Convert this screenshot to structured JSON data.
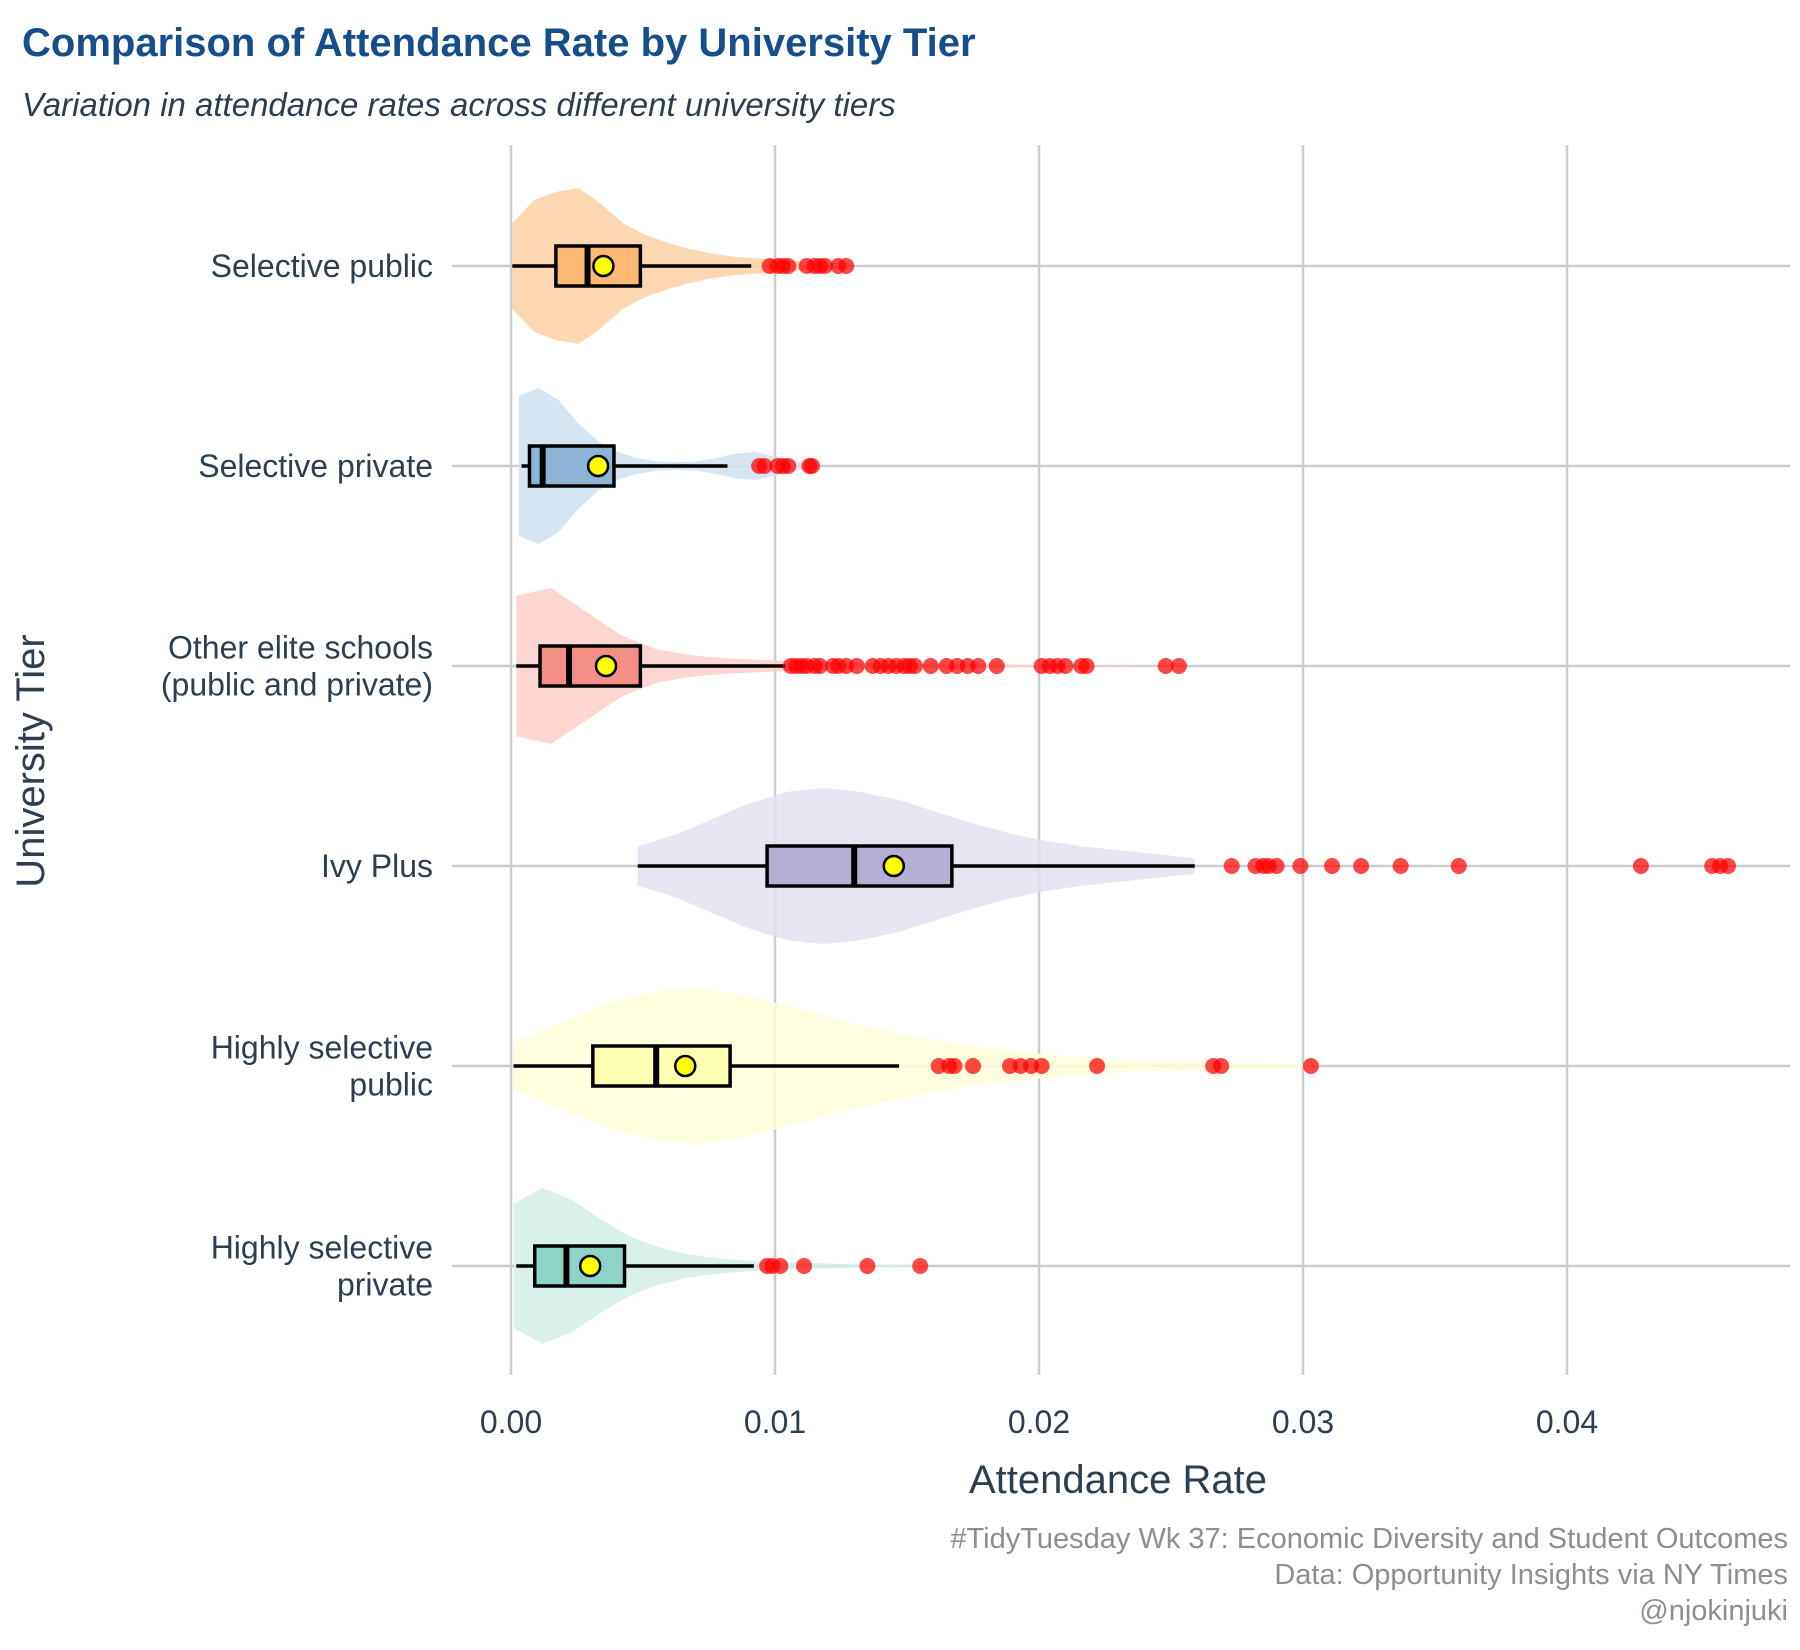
{
  "chart_data": {
    "type": "box-violin",
    "title": "Comparison of Attendance Rate by University Tier",
    "subtitle": "Variation in attendance rates across different university tiers",
    "xlabel": "Attendance Rate",
    "ylabel": "University Tier",
    "xlim": [
      -0.0015,
      0.0482
    ],
    "x_ticks": [
      0.0,
      0.01,
      0.02,
      0.03,
      0.04
    ],
    "x_tick_labels": [
      "0.00",
      "0.01",
      "0.02",
      "0.03",
      "0.04"
    ],
    "grid": true,
    "caption": [
      "#TidyTuesday Wk 37: Economic Diversity and Student Outcomes",
      "Data: Opportunity Insights via NY Times",
      "@njokinjuki"
    ],
    "groups": [
      {
        "label_lines": [
          "Selective public"
        ],
        "color": "#fdb873",
        "violin_color": "#fdd0a2",
        "min": 5e-05,
        "q1": 0.0017,
        "median": 0.0029,
        "q3": 0.0049,
        "max": 0.0091,
        "mean": 0.0035,
        "violin_range": [
          5e-05,
          0.0126
        ],
        "violin_width": [
          0.55,
          0.85,
          0.95,
          1.0,
          0.8,
          0.55,
          0.4,
          0.3,
          0.22,
          0.16,
          0.12,
          0.1,
          0.08,
          0.06,
          0.04,
          0.03
        ],
        "outliers": [
          0.0098,
          0.0101,
          0.0103,
          0.0105,
          0.0112,
          0.0115,
          0.0117,
          0.0119,
          0.0124,
          0.0127
        ]
      },
      {
        "label_lines": [
          "Selective private"
        ],
        "color": "#8cb4d6",
        "violin_color": "#cfe0f0",
        "min": 0.0004,
        "q1": 0.0007,
        "median": 0.0012,
        "q3": 0.0039,
        "max": 0.0082,
        "mean": 0.0033,
        "violin_range": [
          0.0003,
          0.0115
        ],
        "violin_width": [
          0.9,
          1.0,
          0.85,
          0.55,
          0.32,
          0.18,
          0.1,
          0.06,
          0.05,
          0.06,
          0.1,
          0.16,
          0.18,
          0.12,
          0.06,
          0.02
        ],
        "outliers": [
          0.0094,
          0.0096,
          0.0101,
          0.0103,
          0.0105,
          0.0113,
          0.0114
        ]
      },
      {
        "label_lines": [
          "Other elite schools",
          "(public and private)"
        ],
        "color": "#f48f86",
        "violin_color": "#fdcfca",
        "min": 0.0002,
        "q1": 0.0011,
        "median": 0.0022,
        "q3": 0.0049,
        "max": 0.0104,
        "mean": 0.0036,
        "violin_range": [
          0.0002,
          0.0252
        ],
        "violin_width": [
          0.9,
          1.0,
          0.7,
          0.4,
          0.22,
          0.14,
          0.1,
          0.08,
          0.06,
          0.05,
          0.04,
          0.03,
          0.03,
          0.025,
          0.02,
          0.015,
          0.01,
          0.008,
          0.006,
          0.004
        ],
        "outliers": [
          0.0106,
          0.0108,
          0.011,
          0.0112,
          0.0115,
          0.0117,
          0.0122,
          0.0124,
          0.0127,
          0.0131,
          0.0137,
          0.014,
          0.0143,
          0.0146,
          0.0149,
          0.0151,
          0.0153,
          0.0159,
          0.0165,
          0.0169,
          0.0173,
          0.0177,
          0.0184,
          0.0201,
          0.0204,
          0.0207,
          0.021,
          0.0216,
          0.0218,
          0.0248,
          0.0253
        ]
      },
      {
        "label_lines": [
          "Ivy Plus"
        ],
        "color": "#b4b0d4",
        "violin_color": "#e3e1f0",
        "min": 0.0048,
        "q1": 0.0097,
        "median": 0.013,
        "q3": 0.0167,
        "max": 0.0259,
        "mean": 0.0145,
        "violin_range": [
          0.0048,
          0.0259
        ],
        "violin_width": [
          0.25,
          0.4,
          0.6,
          0.8,
          0.95,
          1.0,
          0.95,
          0.85,
          0.7,
          0.55,
          0.42,
          0.32,
          0.25,
          0.2,
          0.15,
          0.1
        ],
        "outliers": [
          0.0273,
          0.0282,
          0.0285,
          0.0287,
          0.029,
          0.0299,
          0.0311,
          0.0322,
          0.0337,
          0.0359,
          0.0428,
          0.0455,
          0.0458,
          0.0461
        ]
      },
      {
        "label_lines": [
          "Highly selective",
          "public"
        ],
        "color": "#ffffb3",
        "violin_color": "#ffffd9",
        "min": 0.0001,
        "q1": 0.0031,
        "median": 0.0055,
        "q3": 0.0083,
        "max": 0.0147,
        "mean": 0.0066,
        "violin_range": [
          0.0001,
          0.0303
        ],
        "violin_width": [
          0.3,
          0.55,
          0.8,
          0.95,
          1.0,
          0.9,
          0.75,
          0.58,
          0.45,
          0.33,
          0.24,
          0.17,
          0.12,
          0.08,
          0.06,
          0.04,
          0.03,
          0.02
        ],
        "outliers": [
          0.0162,
          0.0166,
          0.0168,
          0.0175,
          0.0189,
          0.0193,
          0.0197,
          0.0201,
          0.0222,
          0.0266,
          0.0269,
          0.0303
        ]
      },
      {
        "label_lines": [
          "Highly selective",
          "private"
        ],
        "color": "#8dd3c7",
        "violin_color": "#d3ede8",
        "min": 0.0002,
        "q1": 0.0009,
        "median": 0.0021,
        "q3": 0.0043,
        "max": 0.0092,
        "mean": 0.003,
        "violin_range": [
          0.0001,
          0.0155
        ],
        "violin_width": [
          0.8,
          1.0,
          0.85,
          0.6,
          0.38,
          0.24,
          0.15,
          0.1,
          0.07,
          0.05,
          0.04,
          0.03,
          0.02,
          0.015,
          0.01
        ],
        "outliers": [
          0.0097,
          0.0099,
          0.0102,
          0.0111,
          0.0135,
          0.0155
        ]
      }
    ]
  }
}
